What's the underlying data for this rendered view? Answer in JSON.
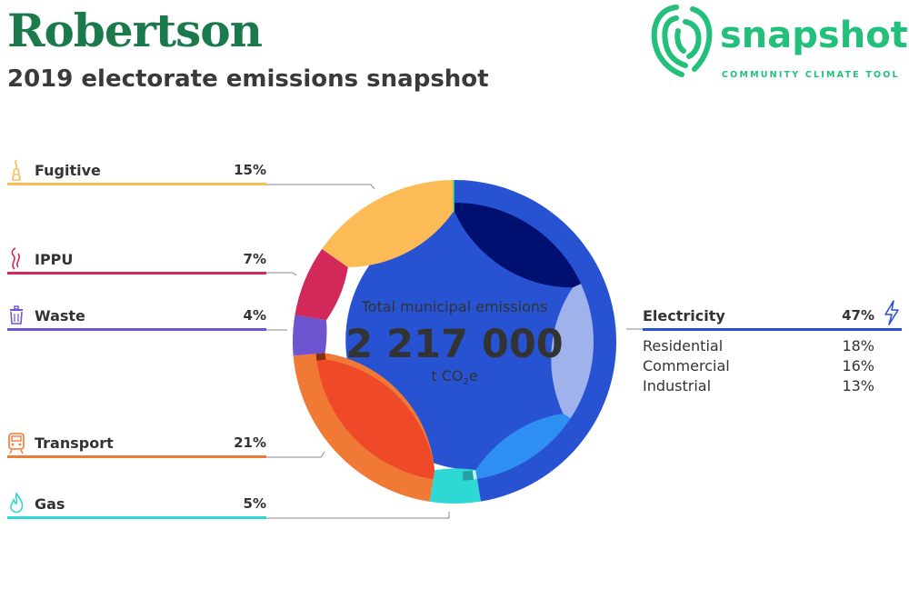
{
  "header": {
    "title": "Robertson",
    "subtitle": "2019 electorate emissions snapshot"
  },
  "logo": {
    "name": "snapshot",
    "tagline": "COMMUNITY CLIMATE TOOL",
    "color": "#22c07a"
  },
  "center": {
    "label": "Total municipal emissions",
    "value": "2 217 000",
    "unit_main": "t CO",
    "unit_sub": "2",
    "unit_end": "e"
  },
  "chart_data": {
    "type": "pie",
    "total_value": 2217000,
    "total_unit": "t CO2e",
    "slices": [
      {
        "name": "Electricity",
        "value": 47,
        "label": "47%",
        "color": "#2752d1",
        "icon": "lightning-icon",
        "sub": [
          {
            "name": "Residential",
            "value": 18,
            "label": "18%",
            "color": "#001070"
          },
          {
            "name": "Commercial",
            "value": 16,
            "label": "16%",
            "color": "#9fb2ec"
          },
          {
            "name": "Industrial",
            "value": 13,
            "label": "13%",
            "color": "#2f8ef2"
          }
        ]
      },
      {
        "name": "Gas",
        "value": 5,
        "label": "5%",
        "color": "#2ed8d4",
        "icon": "flame-icon",
        "sub": [
          {
            "name": "",
            "value": 0.4,
            "color": "#b6f1f0"
          },
          {
            "name": "",
            "value": 1.2,
            "color": "#26a0a6"
          },
          {
            "name": "",
            "value": 3.4,
            "color": "#2ed8d4"
          }
        ]
      },
      {
        "name": "Transport",
        "value": 21,
        "label": "21%",
        "color": "#f07a35",
        "icon": "train-icon",
        "sub": [
          {
            "name": "",
            "value": 20.2,
            "color": "#ee4a2a"
          },
          {
            "name": "",
            "value": 0.8,
            "color": "#8a2d10"
          }
        ]
      },
      {
        "name": "Waste",
        "value": 4,
        "label": "4%",
        "color": "#6e54d0",
        "icon": "trash-icon"
      },
      {
        "name": "IPPU",
        "value": 7,
        "label": "7%",
        "color": "#d2285a",
        "icon": "smoke-icon"
      },
      {
        "name": "Fugitive",
        "value": 15,
        "label": "15%",
        "color": "#fdbb55",
        "icon": "flare-icon"
      },
      {
        "name": "",
        "value": 0.15,
        "color": "#2ec97a"
      }
    ]
  }
}
